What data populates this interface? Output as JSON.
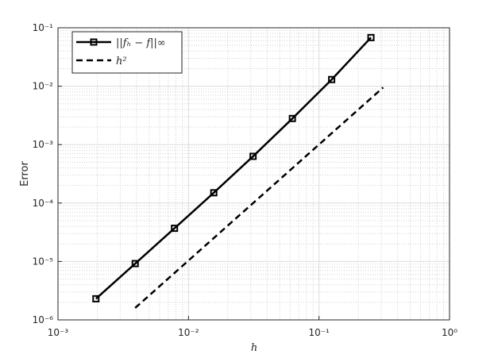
{
  "chart_data": {
    "type": "line",
    "x_label": "h",
    "y_label": "Error",
    "xscale": "log",
    "yscale": "log",
    "grid": true,
    "minor_grid": true,
    "legend": "upper left",
    "xlim": [
      0.001,
      1
    ],
    "xticks": [
      {
        "value": 0.001,
        "label": "10⁻³"
      },
      {
        "value": 0.01,
        "label": "10⁻²"
      },
      {
        "value": 0.1,
        "label": "10⁻¹"
      },
      {
        "value": 1,
        "label": "10⁰"
      }
    ],
    "ylim": [
      1e-06,
      0.1
    ],
    "yticks": [
      {
        "value": 1e-06,
        "label": "10⁻⁶"
      },
      {
        "value": 1e-05,
        "label": "10⁻⁵"
      },
      {
        "value": 0.0001,
        "label": "10⁻⁴"
      },
      {
        "value": 0.001,
        "label": "10⁻³"
      },
      {
        "value": 0.01,
        "label": "10⁻²"
      },
      {
        "value": 0.1,
        "label": "10⁻¹"
      }
    ],
    "series": [
      {
        "name": "||fₕ − f||∞",
        "color": "#000000",
        "style": "solid",
        "marker": "square",
        "x": [
          0.001953125,
          0.00390625,
          0.0078125,
          0.015625,
          0.03125,
          0.0625,
          0.125,
          0.25
        ],
        "values": [
          2.3e-06,
          9.2e-06,
          3.7e-05,
          0.00015,
          0.00063,
          0.0028,
          0.013,
          0.068
        ]
      },
      {
        "name": "h²",
        "color": "#000000",
        "style": "dashed",
        "marker": "none",
        "x": [
          0.0039,
          0.31
        ],
        "values": [
          1.6e-06,
          0.0095
        ]
      }
    ]
  }
}
